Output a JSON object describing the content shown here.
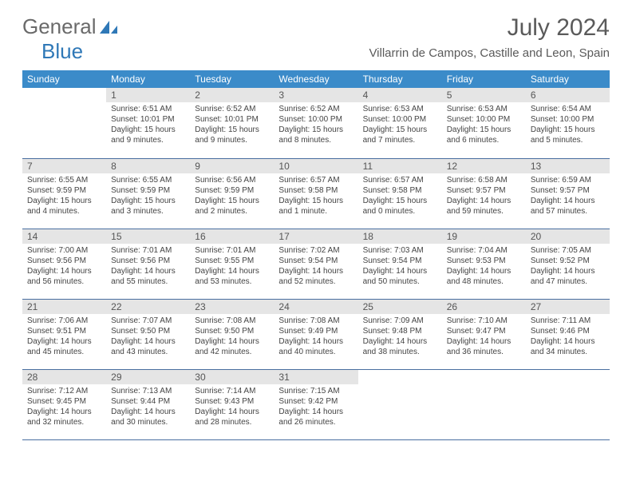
{
  "logo": {
    "text1": "General",
    "text2": "Blue"
  },
  "title": "July 2024",
  "location": "Villarrin de Campos, Castille and Leon, Spain",
  "colors": {
    "header_bg": "#3b8bc9",
    "header_fg": "#ffffff",
    "daynum_bg": "#e5e5e5",
    "row_border": "#4a6fa0",
    "body_text": "#444444",
    "title_text": "#5a5a5a",
    "logo_gray": "#6a6a6a",
    "logo_blue": "#2f78b7"
  },
  "day_headers": [
    "Sunday",
    "Monday",
    "Tuesday",
    "Wednesday",
    "Thursday",
    "Friday",
    "Saturday"
  ],
  "weeks": [
    [
      null,
      {
        "n": "1",
        "sunrise": "6:51 AM",
        "sunset": "10:01 PM",
        "daylight": "15 hours and 9 minutes."
      },
      {
        "n": "2",
        "sunrise": "6:52 AM",
        "sunset": "10:01 PM",
        "daylight": "15 hours and 9 minutes."
      },
      {
        "n": "3",
        "sunrise": "6:52 AM",
        "sunset": "10:00 PM",
        "daylight": "15 hours and 8 minutes."
      },
      {
        "n": "4",
        "sunrise": "6:53 AM",
        "sunset": "10:00 PM",
        "daylight": "15 hours and 7 minutes."
      },
      {
        "n": "5",
        "sunrise": "6:53 AM",
        "sunset": "10:00 PM",
        "daylight": "15 hours and 6 minutes."
      },
      {
        "n": "6",
        "sunrise": "6:54 AM",
        "sunset": "10:00 PM",
        "daylight": "15 hours and 5 minutes."
      }
    ],
    [
      {
        "n": "7",
        "sunrise": "6:55 AM",
        "sunset": "9:59 PM",
        "daylight": "15 hours and 4 minutes."
      },
      {
        "n": "8",
        "sunrise": "6:55 AM",
        "sunset": "9:59 PM",
        "daylight": "15 hours and 3 minutes."
      },
      {
        "n": "9",
        "sunrise": "6:56 AM",
        "sunset": "9:59 PM",
        "daylight": "15 hours and 2 minutes."
      },
      {
        "n": "10",
        "sunrise": "6:57 AM",
        "sunset": "9:58 PM",
        "daylight": "15 hours and 1 minute."
      },
      {
        "n": "11",
        "sunrise": "6:57 AM",
        "sunset": "9:58 PM",
        "daylight": "15 hours and 0 minutes."
      },
      {
        "n": "12",
        "sunrise": "6:58 AM",
        "sunset": "9:57 PM",
        "daylight": "14 hours and 59 minutes."
      },
      {
        "n": "13",
        "sunrise": "6:59 AM",
        "sunset": "9:57 PM",
        "daylight": "14 hours and 57 minutes."
      }
    ],
    [
      {
        "n": "14",
        "sunrise": "7:00 AM",
        "sunset": "9:56 PM",
        "daylight": "14 hours and 56 minutes."
      },
      {
        "n": "15",
        "sunrise": "7:01 AM",
        "sunset": "9:56 PM",
        "daylight": "14 hours and 55 minutes."
      },
      {
        "n": "16",
        "sunrise": "7:01 AM",
        "sunset": "9:55 PM",
        "daylight": "14 hours and 53 minutes."
      },
      {
        "n": "17",
        "sunrise": "7:02 AM",
        "sunset": "9:54 PM",
        "daylight": "14 hours and 52 minutes."
      },
      {
        "n": "18",
        "sunrise": "7:03 AM",
        "sunset": "9:54 PM",
        "daylight": "14 hours and 50 minutes."
      },
      {
        "n": "19",
        "sunrise": "7:04 AM",
        "sunset": "9:53 PM",
        "daylight": "14 hours and 48 minutes."
      },
      {
        "n": "20",
        "sunrise": "7:05 AM",
        "sunset": "9:52 PM",
        "daylight": "14 hours and 47 minutes."
      }
    ],
    [
      {
        "n": "21",
        "sunrise": "7:06 AM",
        "sunset": "9:51 PM",
        "daylight": "14 hours and 45 minutes."
      },
      {
        "n": "22",
        "sunrise": "7:07 AM",
        "sunset": "9:50 PM",
        "daylight": "14 hours and 43 minutes."
      },
      {
        "n": "23",
        "sunrise": "7:08 AM",
        "sunset": "9:50 PM",
        "daylight": "14 hours and 42 minutes."
      },
      {
        "n": "24",
        "sunrise": "7:08 AM",
        "sunset": "9:49 PM",
        "daylight": "14 hours and 40 minutes."
      },
      {
        "n": "25",
        "sunrise": "7:09 AM",
        "sunset": "9:48 PM",
        "daylight": "14 hours and 38 minutes."
      },
      {
        "n": "26",
        "sunrise": "7:10 AM",
        "sunset": "9:47 PM",
        "daylight": "14 hours and 36 minutes."
      },
      {
        "n": "27",
        "sunrise": "7:11 AM",
        "sunset": "9:46 PM",
        "daylight": "14 hours and 34 minutes."
      }
    ],
    [
      {
        "n": "28",
        "sunrise": "7:12 AM",
        "sunset": "9:45 PM",
        "daylight": "14 hours and 32 minutes."
      },
      {
        "n": "29",
        "sunrise": "7:13 AM",
        "sunset": "9:44 PM",
        "daylight": "14 hours and 30 minutes."
      },
      {
        "n": "30",
        "sunrise": "7:14 AM",
        "sunset": "9:43 PM",
        "daylight": "14 hours and 28 minutes."
      },
      {
        "n": "31",
        "sunrise": "7:15 AM",
        "sunset": "9:42 PM",
        "daylight": "14 hours and 26 minutes."
      },
      null,
      null,
      null
    ]
  ]
}
